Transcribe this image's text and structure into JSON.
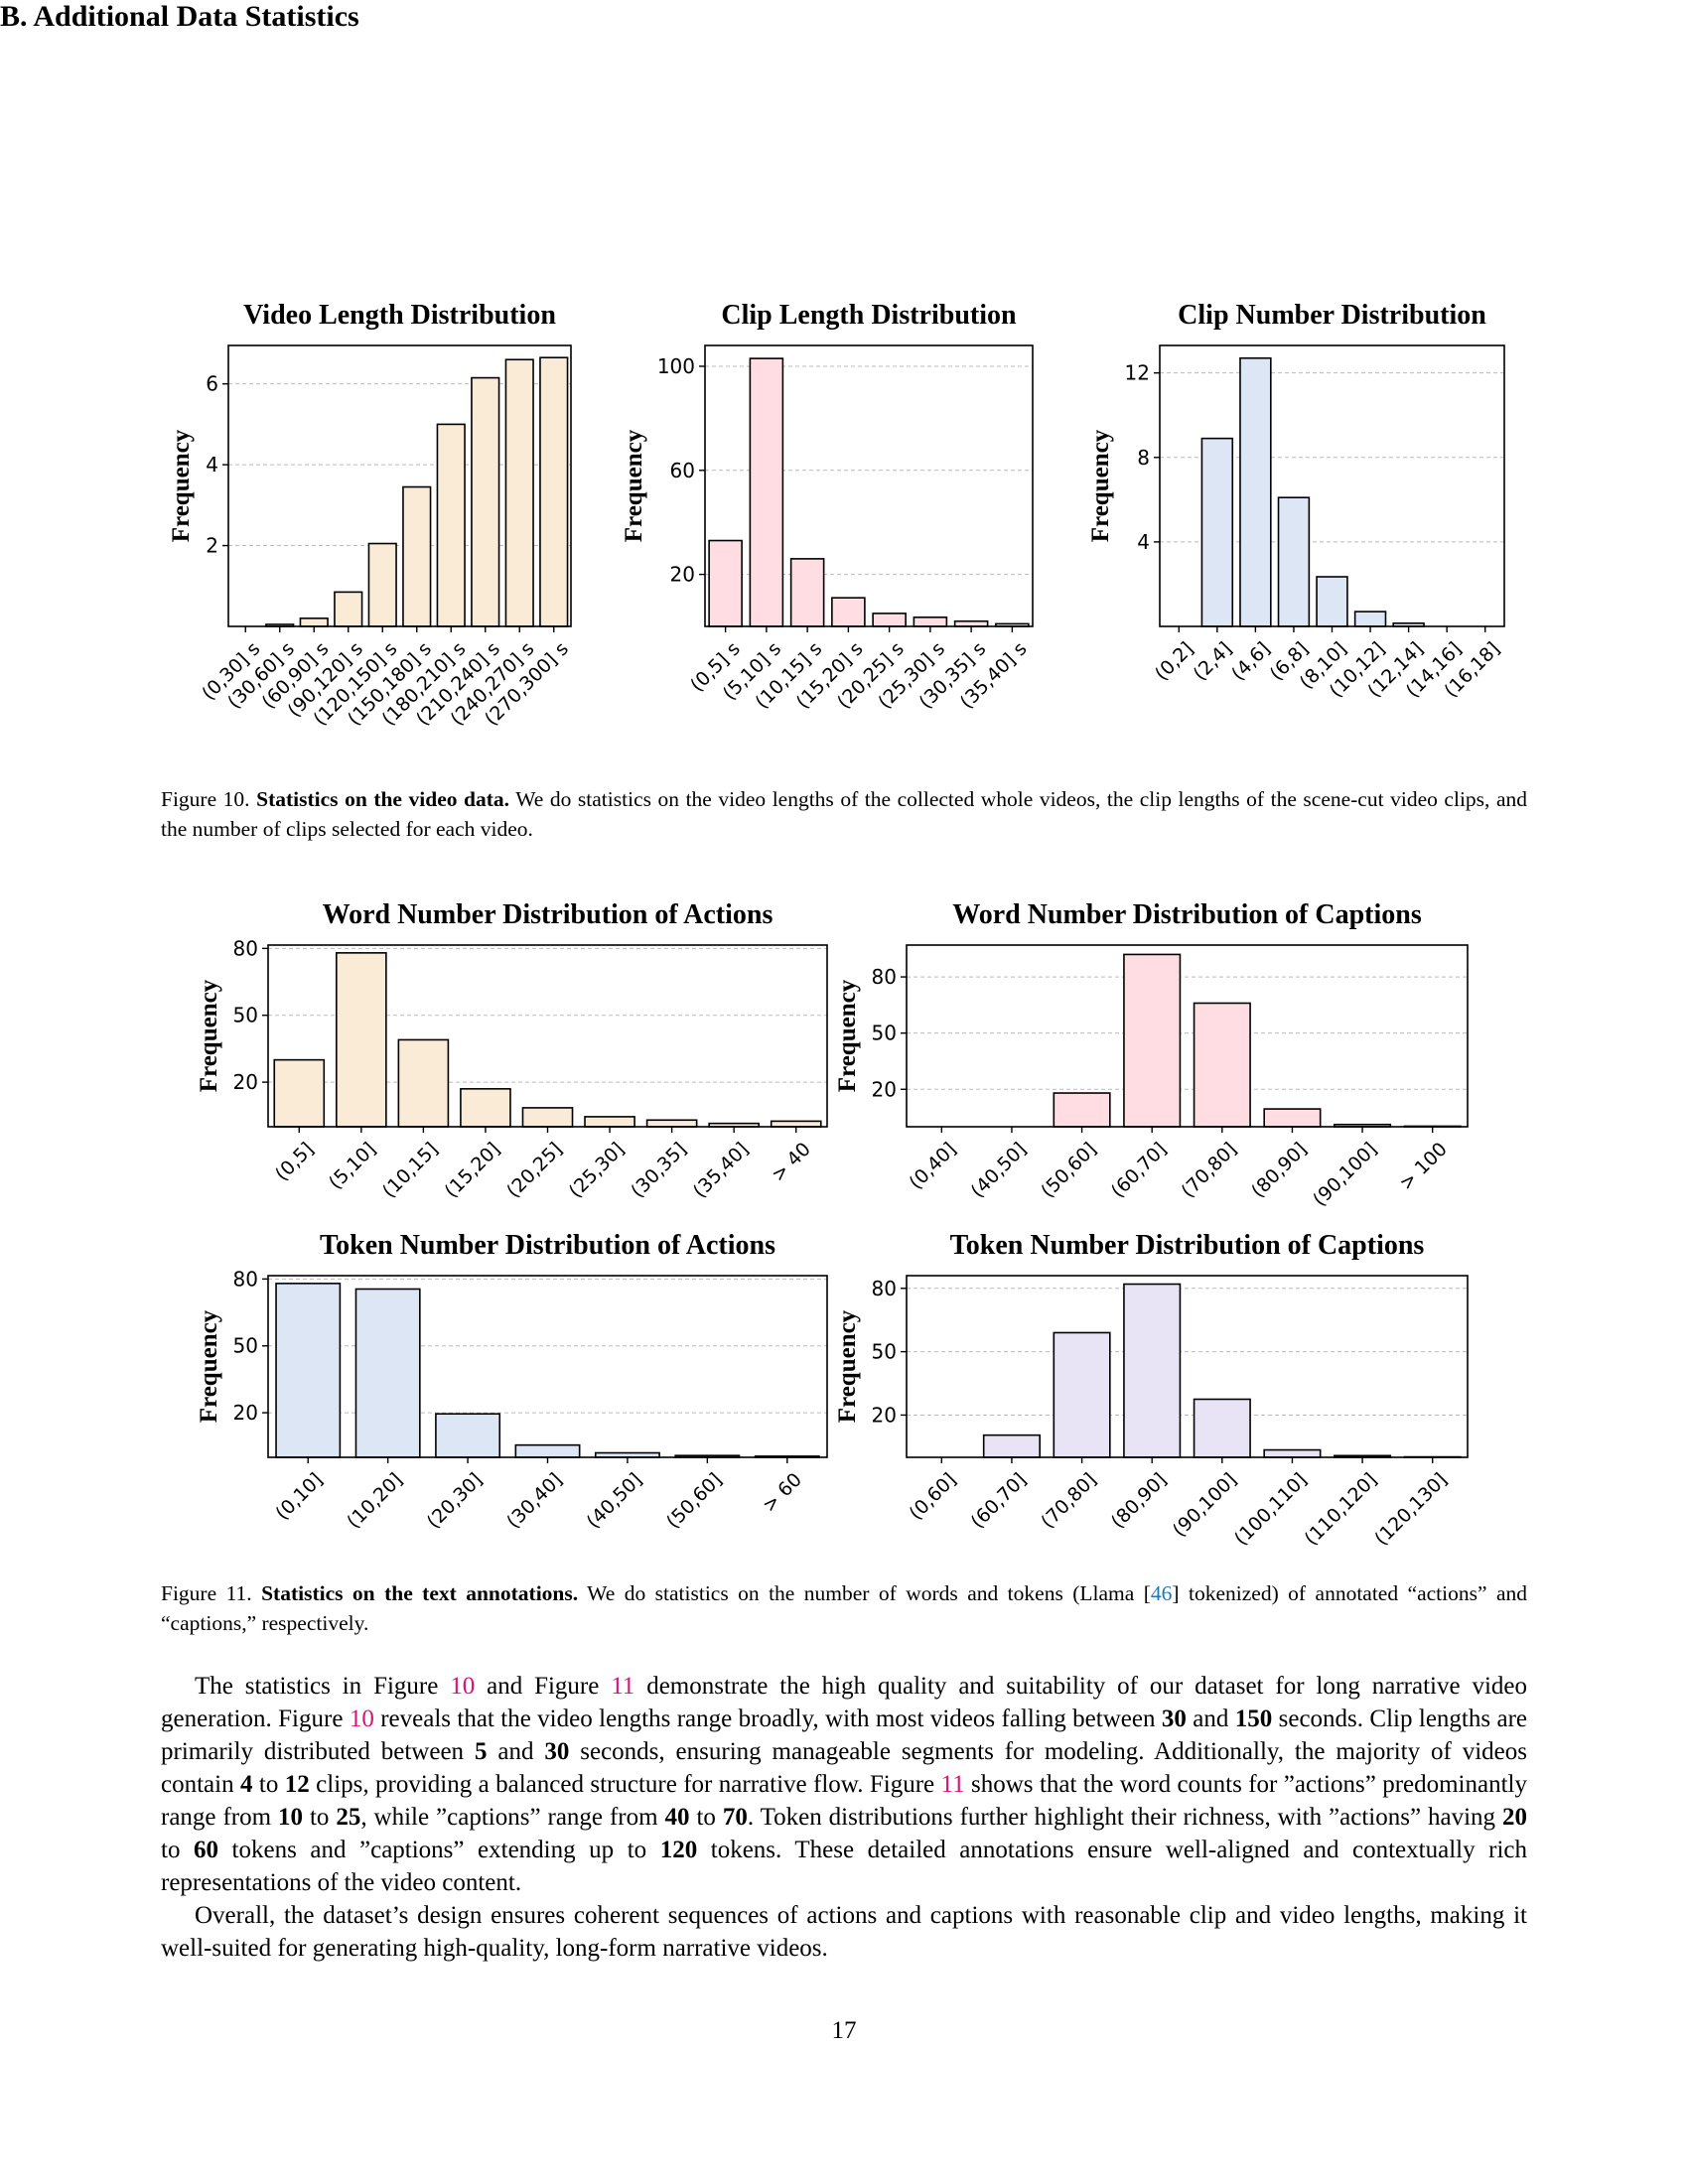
{
  "section": {
    "heading": "B. Additional Data Statistics"
  },
  "figure10": {
    "label": "Figure 10.",
    "bold": "Statistics on the video data.",
    "text": "We do statistics on the video lengths of the collected whole videos, the clip lengths of the scene-cut video clips, and the number of clips selected for each video."
  },
  "figure11": {
    "label": "Figure 11.",
    "bold": "Statistics on the text annotations.",
    "text_before": "We do statistics on the number of words and tokens (Llama [",
    "cite": "46",
    "text_after": "] tokenized) of annotated “actions” and “captions,” respectively."
  },
  "paragraph1": {
    "s1": "The statistics in Figure ",
    "r1": "10",
    "s2": " and Figure ",
    "r2": "11",
    "s3": " demonstrate the high quality and suitability of our dataset for long narrative video generation.  Figure ",
    "r3": "10",
    "s4": " reveals that the video lengths range broadly, with most videos falling between ",
    "b1": "30",
    "s5": " and ",
    "b2": "150",
    "s6": " seconds. Clip lengths are primarily distributed between ",
    "b3": "5",
    "s7": " and ",
    "b4": "30",
    "s8": " seconds, ensuring manageable segments for modeling. Additionally, the majority of videos contain ",
    "b5": "4",
    "s9": " to ",
    "b6": "12",
    "s10": " clips, providing a balanced structure for narrative flow. Figure ",
    "r4": "11",
    "s11": " shows that the word counts for ”actions” predominantly range from ",
    "b7": "10",
    "s12": " to ",
    "b8": "25",
    "s13": ", while ”captions” range from ",
    "b9": "40",
    "s14": " to ",
    "b10": "70",
    "s15": ".  Token distributions further highlight their richness, with ”actions” having ",
    "b11": "20",
    "s16": " to ",
    "b12": "60",
    "s17": " tokens and ”captions” extending up to ",
    "b13": "120",
    "s18": " tokens.  These detailed annotations ensure well-aligned and contextually rich representations of the video content."
  },
  "paragraph2": {
    "text": "Overall, the dataset’s design ensures coherent sequences of actions and captions with reasonable clip and video lengths, making it well-suited for generating high-quality, long-form narrative videos."
  },
  "page_number": "17",
  "chart_data": [
    {
      "id": "video-length",
      "type": "bar",
      "title": "Video Length Distribution",
      "ylabel": "Frequency",
      "xlabel": "",
      "color": "#faebd7",
      "categories": [
        "(0,30] s",
        "(30,60] s",
        "(60,90] s",
        "(90,120] s",
        "(120,150] s",
        "(150,180] s",
        "(180,210] s",
        "(210,240] s",
        "(240,270] s",
        "(270,300] s"
      ],
      "values": [
        0,
        0.05,
        0.2,
        0.85,
        2.05,
        3.45,
        5.0,
        6.15,
        6.6,
        6.65
      ],
      "yticks": [
        2,
        4,
        6
      ],
      "ylim": [
        0,
        6.95
      ],
      "grid": true
    },
    {
      "id": "clip-length",
      "type": "bar",
      "title": "Clip Length Distribution",
      "ylabel": "Frequency",
      "xlabel": "",
      "color": "#ffdde3",
      "categories": [
        "(0,5] s",
        "(5,10] s",
        "(10,15] s",
        "(15,20] s",
        "(20,25] s",
        "(25,30] s",
        "(30,35] s",
        "(35,40] s"
      ],
      "values": [
        33,
        103,
        26,
        11,
        5,
        3.5,
        2,
        1
      ],
      "yticks": [
        20,
        60,
        100
      ],
      "ylim": [
        0,
        108
      ],
      "grid": true
    },
    {
      "id": "clip-number",
      "type": "bar",
      "title": "Clip Number Distribution",
      "ylabel": "Frequency",
      "xlabel": "",
      "color": "#dde6f5",
      "categories": [
        "(0,2]",
        "(2,4]",
        "(4,6]",
        "(6,8]",
        "(8,10]",
        "(10,12]",
        "(12,14]",
        "(14,16]",
        "(16,18]"
      ],
      "values": [
        0,
        8.9,
        12.7,
        6.1,
        2.35,
        0.7,
        0.15,
        0,
        0
      ],
      "yticks": [
        4,
        8,
        12
      ],
      "ylim": [
        0,
        13.3
      ],
      "grid": true
    },
    {
      "id": "word-actions",
      "type": "bar",
      "title": "Word Number Distribution of Actions",
      "ylabel": "Frequency",
      "xlabel": "",
      "color": "#faebd7",
      "categories": [
        "(0,5]",
        "(5,10]",
        "(10,15]",
        "(15,20]",
        "(20,25]",
        "(25,30]",
        "(30,35]",
        "(35,40]",
        "> 40"
      ],
      "values": [
        30,
        78,
        39,
        17,
        8.5,
        4.5,
        3,
        1.5,
        2.5
      ],
      "yticks": [
        20,
        50,
        80
      ],
      "ylim": [
        0,
        81.5
      ],
      "grid": true
    },
    {
      "id": "word-captions",
      "type": "bar",
      "title": "Word Number Distribution of Captions",
      "ylabel": "Frequency",
      "xlabel": "",
      "color": "#ffdde3",
      "categories": [
        "(0,40]",
        "(40,50]",
        "(50,60]",
        "(60,70]",
        "(70,80]",
        "(80,90]",
        "(90,100]",
        "> 100"
      ],
      "values": [
        0,
        0,
        18,
        92,
        66,
        9.5,
        1.2,
        0.3
      ],
      "yticks": [
        20,
        50,
        80
      ],
      "ylim": [
        0,
        97
      ],
      "grid": true
    },
    {
      "id": "token-actions",
      "type": "bar",
      "title": "Token Number Distribution of Actions",
      "ylabel": "Frequency",
      "xlabel": "",
      "color": "#dde6f5",
      "categories": [
        "(0,10]",
        "(10,20]",
        "(20,30]",
        "(30,40]",
        "(40,50]",
        "(50,60]",
        "> 60"
      ],
      "values": [
        78,
        75.5,
        19.5,
        5.5,
        2,
        0.8,
        0.5
      ],
      "yticks": [
        20,
        50,
        80
      ],
      "ylim": [
        0,
        81.5
      ],
      "grid": true
    },
    {
      "id": "token-captions",
      "type": "bar",
      "title": "Token Number Distribution of Captions",
      "ylabel": "Frequency",
      "xlabel": "",
      "color": "#e8e4f5",
      "categories": [
        "(0,60]",
        "(60,70]",
        "(70,80]",
        "(80,90]",
        "(90,100]",
        "(100,110]",
        "(110,120]",
        "(120,130]"
      ],
      "values": [
        0,
        10.5,
        59,
        82,
        27.5,
        3.5,
        0.8,
        0.2
      ],
      "yticks": [
        20,
        50,
        80
      ],
      "ylim": [
        0,
        86
      ],
      "grid": true
    }
  ]
}
